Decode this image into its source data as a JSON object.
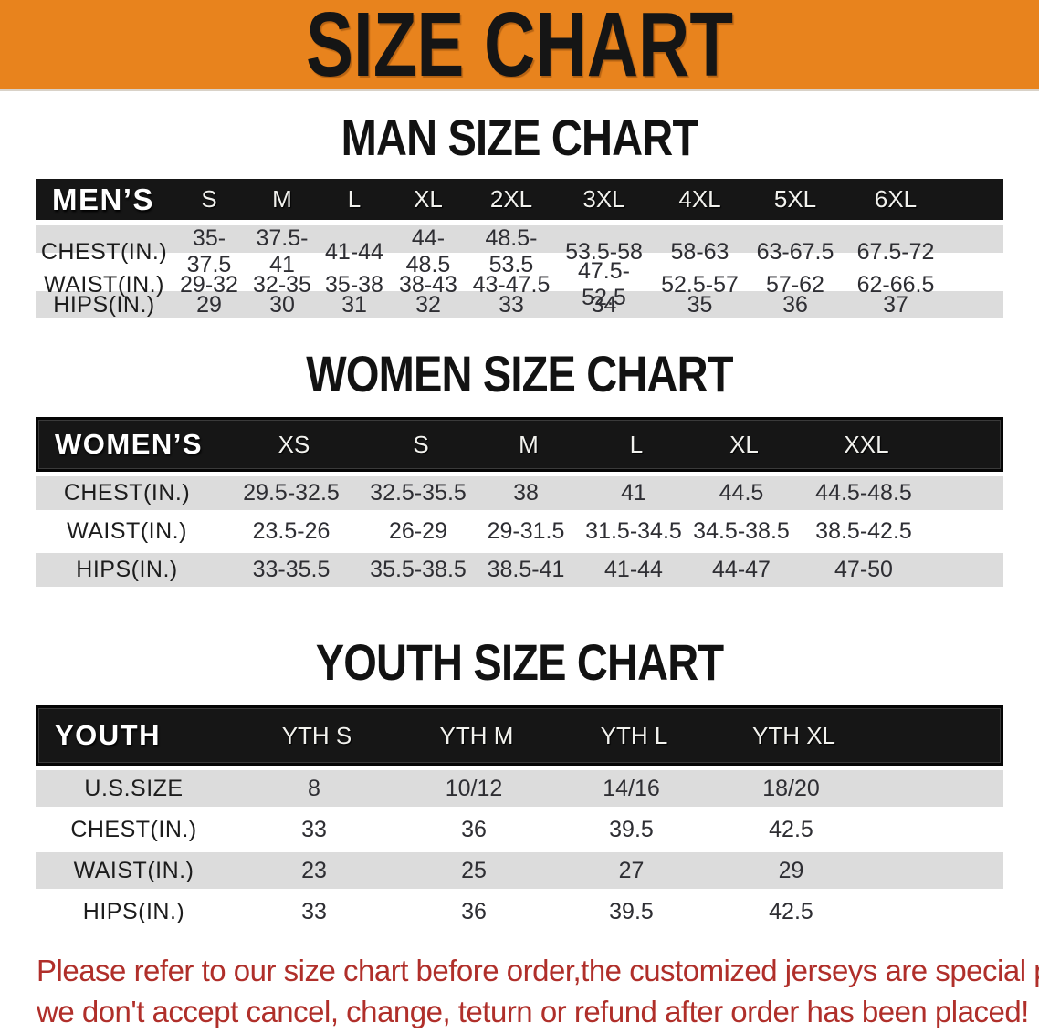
{
  "banner": {
    "title": "SIZE CHART",
    "bg_color": "#e8831d",
    "text_color": "#151515"
  },
  "sections": {
    "man": {
      "title": "MAN SIZE CHART"
    },
    "women": {
      "title": "WOMEN SIZE CHART"
    },
    "youth": {
      "title": "YOUTH SIZE CHART"
    }
  },
  "colors": {
    "header_black": "#161616",
    "row_shade_gray": "#dcdcdc",
    "note_red": "#b02f2a"
  },
  "tables": {
    "men": {
      "label": "MEN’S",
      "sizes": [
        "S",
        "M",
        "L",
        "XL",
        "2XL",
        "3XL",
        "4XL",
        "5XL",
        "6XL"
      ],
      "rows": [
        {
          "label": "CHEST(IN.)",
          "values": [
            "35-37.5",
            "37.5-41",
            "41-44",
            "44-48.5",
            "48.5-53.5",
            "53.5-58",
            "58-63",
            "63-67.5",
            "67.5-72"
          ]
        },
        {
          "label": "WAIST(IN.)",
          "values": [
            "29-32",
            "32-35",
            "35-38",
            "38-43",
            "43-47.5",
            "47.5-52.5",
            "52.5-57",
            "57-62",
            "62-66.5"
          ]
        },
        {
          "label": "HIPS(IN.)",
          "values": [
            "29",
            "30",
            "31",
            "32",
            "33",
            "34",
            "35",
            "36",
            "37"
          ]
        }
      ]
    },
    "women": {
      "label": "WOMEN’S",
      "sizes": [
        "XS",
        "S",
        "M",
        "L",
        "XL",
        "XXL"
      ],
      "rows": [
        {
          "label": "CHEST(IN.)",
          "values": [
            "29.5-32.5",
            "32.5-35.5",
            "38",
            "41",
            "44.5",
            "44.5-48.5"
          ]
        },
        {
          "label": "WAIST(IN.)",
          "values": [
            "23.5-26",
            "26-29",
            "29-31.5",
            "31.5-34.5",
            "34.5-38.5",
            "38.5-42.5"
          ]
        },
        {
          "label": "HIPS(IN.)",
          "values": [
            "33-35.5",
            "35.5-38.5",
            "38.5-41",
            "41-44",
            "44-47",
            "47-50"
          ]
        }
      ]
    },
    "youth": {
      "label": "YOUTH",
      "sizes": [
        "YTH S",
        "YTH M",
        "YTH L",
        "YTH XL"
      ],
      "rows": [
        {
          "label": "U.S.SIZE",
          "values": [
            "8",
            "10/12",
            "14/16",
            "18/20"
          ]
        },
        {
          "label": "CHEST(IN.)",
          "values": [
            "33",
            "36",
            "39.5",
            "42.5"
          ]
        },
        {
          "label": "WAIST(IN.)",
          "values": [
            "23",
            "25",
            "27",
            "29"
          ]
        },
        {
          "label": "HIPS(IN.)",
          "values": [
            "33",
            "36",
            "39.5",
            "42.5"
          ]
        }
      ]
    }
  },
  "note": {
    "line1": "Please refer to our size chart before order,the customized jerseys are special products,",
    "line2": "we don't accept cancel, change, teturn or refund after order has been placed!"
  }
}
